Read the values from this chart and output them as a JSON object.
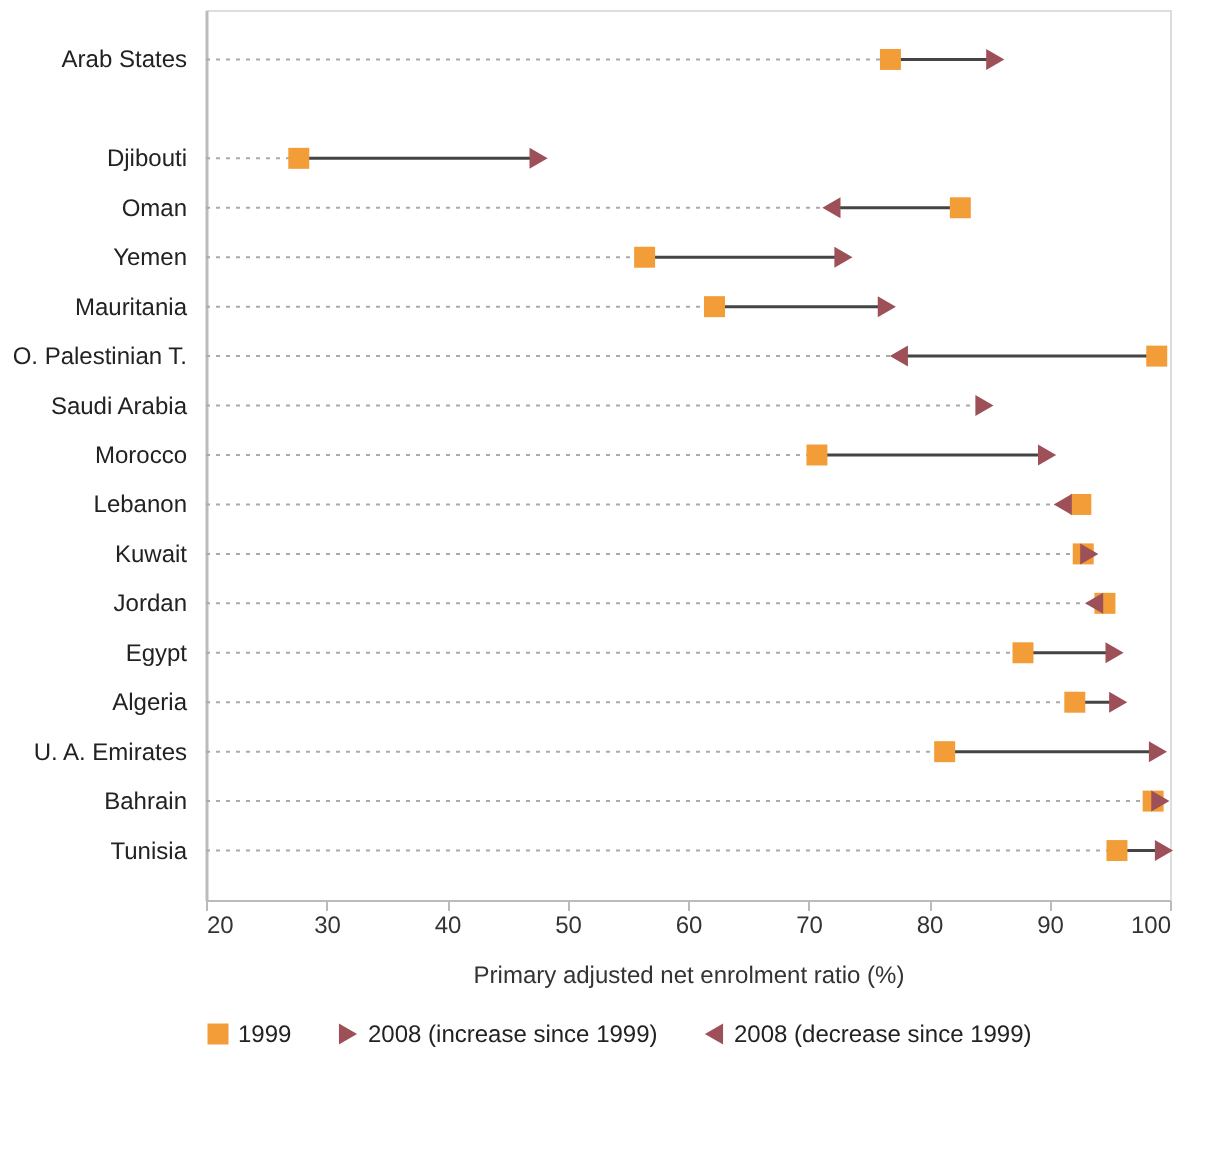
{
  "chart_data": {
    "type": "scatter",
    "orientation": "horizontal",
    "xlabel": "Primary adjusted net enrolment ratio (%)",
    "categories": [
      "Arab States",
      null,
      "Djibouti",
      "Oman",
      "Yemen",
      "Mauritania",
      "O. Palestinian T.",
      "Saudi Arabia",
      "Morocco",
      "Lebanon",
      "Kuwait",
      "Jordan",
      "Egypt",
      "Algeria",
      "U. A. Emirates",
      "Bahrain",
      "Tunisia"
    ],
    "series": [
      {
        "name": "1999",
        "color": "#f29d38",
        "marker": "square",
        "values": [
          76.8,
          null,
          27.7,
          82.6,
          56.4,
          62.2,
          98.9,
          null,
          70.7,
          92.6,
          92.8,
          94.6,
          87.8,
          92.1,
          81.3,
          98.6,
          95.6
        ]
      },
      {
        "name": "2008 (increase since 1999)",
        "color": "#9e5058",
        "marker": "triangle",
        "values": [
          85.5,
          null,
          47.6,
          null,
          72.9,
          76.5,
          null,
          84.6,
          89.8,
          null,
          93.3,
          null,
          95.4,
          95.7,
          99.0,
          99.2,
          99.5
        ]
      },
      {
        "name": "2008 (decrease since 1999)",
        "color": "#9e5058",
        "marker": "triangle",
        "values": [
          null,
          null,
          null,
          71.9,
          null,
          null,
          77.5,
          null,
          null,
          91.1,
          null,
          93.7,
          null,
          null,
          null,
          null,
          null
        ]
      }
    ],
    "xlim": [
      20,
      100
    ],
    "xticks": [
      20,
      30,
      40,
      50,
      60,
      70,
      80,
      90,
      100
    ],
    "grid": "y",
    "legend": "bottom"
  }
}
